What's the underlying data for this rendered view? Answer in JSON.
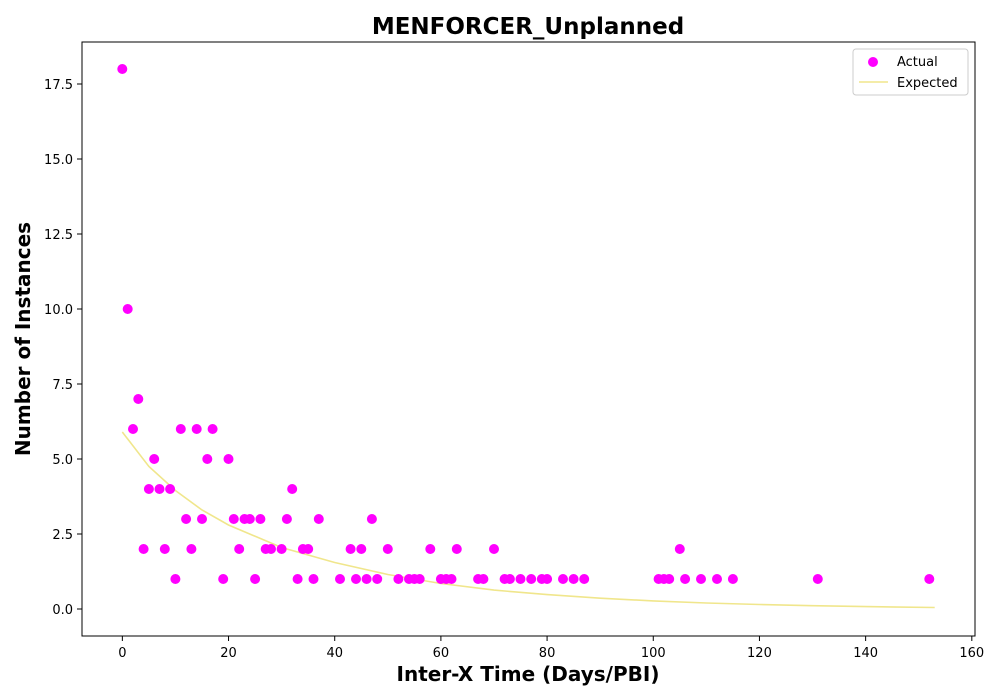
{
  "chart_data": {
    "type": "scatter",
    "title": "MENFORCER_Unplanned",
    "xlabel": "Inter-X Time (Days/PBI)",
    "ylabel": "Number of Instances",
    "xlim": [
      -7.6,
      160.6
    ],
    "ylim": [
      -0.9,
      18.9
    ],
    "xticks": [
      0,
      20,
      40,
      60,
      80,
      100,
      120,
      140,
      160
    ],
    "yticks": [
      0.0,
      2.5,
      5.0,
      7.5,
      10.0,
      12.5,
      15.0,
      17.5
    ],
    "xtick_labels": [
      "0",
      "20",
      "40",
      "60",
      "80",
      "100",
      "120",
      "140",
      "160"
    ],
    "ytick_labels": [
      "0.0",
      "2.5",
      "5.0",
      "7.5",
      "10.0",
      "12.5",
      "15.0",
      "17.5"
    ],
    "grid": false,
    "legend_position": "top-right",
    "series": [
      {
        "name": "Actual",
        "kind": "scatter",
        "color": "#ff00ff",
        "x": [
          0,
          1,
          2,
          3,
          4,
          5,
          6,
          7,
          8,
          9,
          10,
          11,
          12,
          13,
          14,
          15,
          16,
          17,
          19,
          20,
          21,
          22,
          23,
          24,
          25,
          26,
          27,
          28,
          30,
          31,
          32,
          33,
          34,
          35,
          36,
          37,
          41,
          43,
          44,
          45,
          46,
          47,
          48,
          50,
          52,
          54,
          55,
          56,
          58,
          60,
          61,
          62,
          63,
          67,
          68,
          70,
          72,
          73,
          75,
          77,
          79,
          80,
          83,
          85,
          87,
          101,
          102,
          103,
          105,
          106,
          109,
          112,
          115,
          131,
          152
        ],
        "y": [
          18,
          10,
          6,
          7,
          2,
          4,
          5,
          4,
          2,
          4,
          1,
          6,
          3,
          2,
          6,
          3,
          5,
          6,
          1,
          5,
          3,
          2,
          3,
          3,
          1,
          3,
          2,
          2,
          2,
          3,
          4,
          1,
          2,
          2,
          1,
          3,
          1,
          2,
          1,
          2,
          1,
          3,
          1,
          2,
          1,
          1,
          1,
          1,
          2,
          1,
          1,
          1,
          2,
          1,
          1,
          2,
          1,
          1,
          1,
          1,
          1,
          1,
          1,
          1,
          1,
          1,
          1,
          1,
          2,
          1,
          1,
          1,
          1,
          1,
          1
        ]
      },
      {
        "name": "Expected",
        "kind": "line",
        "color": "#f0e68c",
        "x": [
          0,
          5,
          10,
          15,
          20,
          30,
          40,
          50,
          60,
          70,
          80,
          90,
          100,
          110,
          120,
          130,
          140,
          153
        ],
        "y": [
          5.9,
          4.75,
          3.95,
          3.3,
          2.8,
          2.05,
          1.55,
          1.15,
          0.85,
          0.63,
          0.48,
          0.36,
          0.27,
          0.2,
          0.15,
          0.11,
          0.08,
          0.05
        ]
      }
    ]
  }
}
